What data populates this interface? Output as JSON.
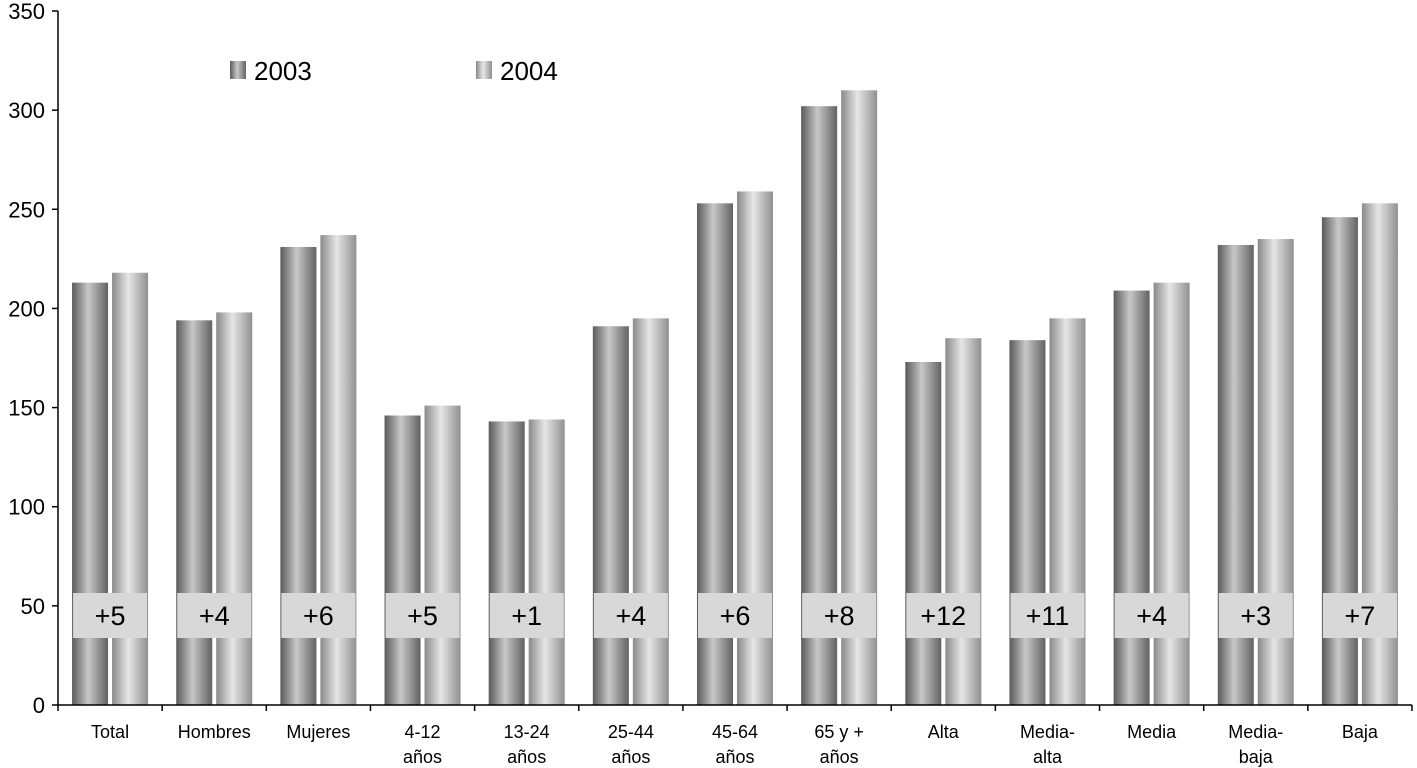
{
  "chart_data": {
    "type": "bar",
    "categories": [
      [
        "Total"
      ],
      [
        "Hombres"
      ],
      [
        "Mujeres"
      ],
      [
        "4-12",
        "años"
      ],
      [
        "13-24",
        "años"
      ],
      [
        "25-44",
        "años"
      ],
      [
        "45-64",
        "años"
      ],
      [
        "65 y +",
        "años"
      ],
      [
        "Alta"
      ],
      [
        "Media-",
        "alta"
      ],
      [
        "Media"
      ],
      [
        "Media-",
        "baja"
      ],
      [
        "Baja"
      ]
    ],
    "series": [
      {
        "name": "2003",
        "values": [
          213,
          194,
          231,
          146,
          143,
          191,
          253,
          302,
          173,
          184,
          209,
          232,
          246
        ]
      },
      {
        "name": "2004",
        "values": [
          218,
          198,
          237,
          151,
          144,
          195,
          259,
          310,
          185,
          195,
          213,
          235,
          253
        ]
      }
    ],
    "annotations": [
      "+5",
      "+4",
      "+6",
      "+5",
      "+1",
      "+4",
      "+6",
      "+8",
      "+12",
      "+11",
      "+4",
      "+3",
      "+7"
    ],
    "ylim": [
      0,
      350
    ],
    "yticks": [
      0,
      50,
      100,
      150,
      200,
      250,
      300,
      350
    ],
    "grid": false,
    "legend_position": "top-left"
  }
}
